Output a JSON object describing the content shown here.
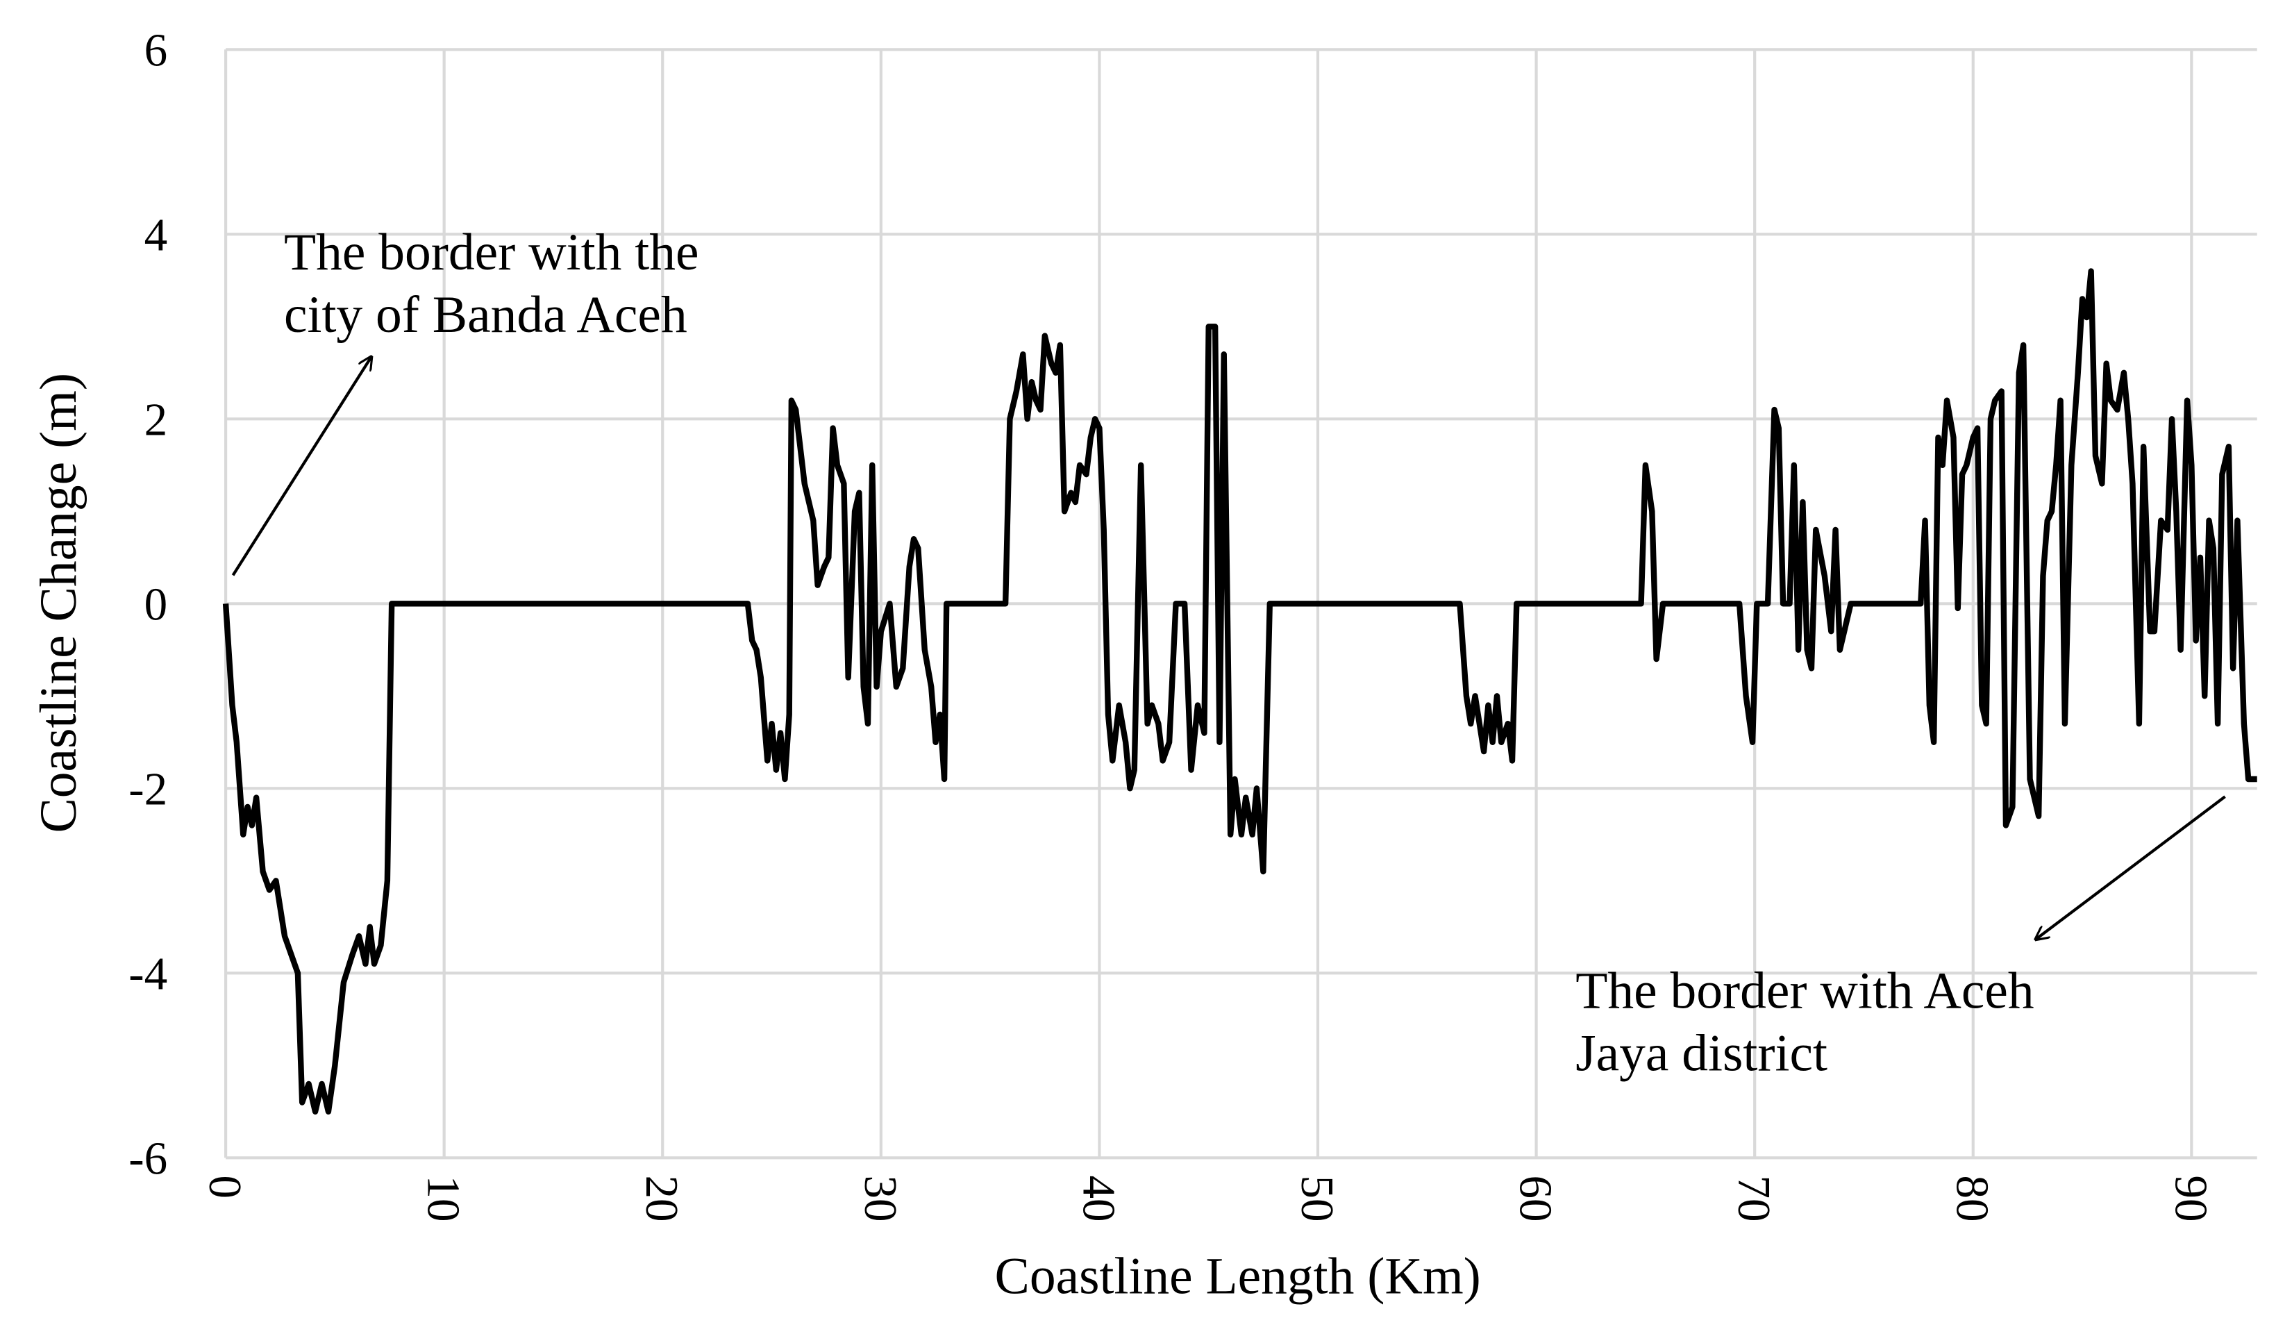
{
  "chart_data": {
    "type": "line",
    "xlabel": "Coastline Length (Km)",
    "ylabel": "Coastline Change (m)",
    "xlim": [
      0,
      93
    ],
    "xticks": [
      0,
      10,
      20,
      30,
      40,
      50,
      60,
      70,
      80,
      90
    ],
    "ylim": [
      -6,
      6
    ],
    "yticks": [
      -6,
      -4,
      -2,
      0,
      2,
      4,
      6
    ],
    "grid": true,
    "color": "#000000",
    "annotations": [
      {
        "lines": [
          "The border with the",
          "city of Banda Aceh"
        ]
      },
      {
        "lines": [
          "The border with Aceh",
          "Jaya district"
        ]
      }
    ],
    "x": [
      0,
      0.3,
      0.5,
      0.8,
      1.0,
      1.2,
      1.4,
      1.7,
      2.0,
      2.3,
      2.7,
      3.0,
      3.3,
      3.5,
      3.8,
      4.1,
      4.4,
      4.7,
      5.0,
      5.4,
      5.8,
      6.1,
      6.4,
      6.6,
      6.8,
      7.1,
      7.4,
      7.6,
      23.9,
      24.1,
      24.3,
      24.5,
      24.8,
      25.0,
      25.2,
      25.4,
      25.6,
      25.8,
      25.9,
      26.1,
      26.5,
      26.9,
      27.1,
      27.4,
      27.6,
      27.8,
      28.0,
      28.3,
      28.5,
      28.8,
      29.0,
      29.2,
      29.4,
      29.6,
      29.8,
      30.0,
      30.4,
      30.7,
      31.0,
      31.3,
      31.5,
      31.7,
      32.0,
      32.3,
      32.5,
      32.7,
      32.9,
      33.0,
      35.7,
      35.9,
      36.2,
      36.5,
      36.7,
      36.9,
      37.1,
      37.3,
      37.5,
      37.8,
      38.0,
      38.2,
      38.4,
      38.7,
      38.9,
      39.1,
      39.4,
      39.6,
      39.8,
      40.0,
      40.2,
      40.4,
      40.6,
      40.9,
      41.2,
      41.4,
      41.6,
      41.9,
      42.2,
      42.4,
      42.7,
      42.9,
      43.2,
      43.5,
      43.9,
      44.2,
      44.5,
      44.8,
      45.0,
      45.3,
      45.5,
      45.7,
      46.0,
      46.2,
      46.5,
      46.7,
      47.0,
      47.2,
      47.5,
      47.8,
      56.5,
      56.8,
      57.0,
      57.2,
      57.6,
      57.8,
      58.0,
      58.2,
      58.4,
      58.7,
      58.9,
      59.1,
      64.8,
      65.0,
      65.3,
      65.5,
      65.8,
      69.3,
      69.6,
      69.9,
      70.1,
      70.6,
      70.9,
      71.1,
      71.3,
      71.6,
      71.8,
      72.0,
      72.2,
      72.4,
      72.6,
      72.8,
      73.2,
      73.5,
      73.7,
      73.9,
      74.2,
      74.4,
      77.6,
      77.8,
      78.0,
      78.2,
      78.4,
      78.6,
      78.8,
      79.1,
      79.3,
      79.5,
      79.7,
      80.0,
      80.2,
      80.4,
      80.6,
      80.8,
      81.0,
      81.3,
      81.5,
      81.8,
      82.1,
      82.3,
      82.6,
      83.0,
      83.2,
      83.4,
      83.6,
      83.8,
      84.0,
      84.2,
      84.5,
      84.8,
      85.0,
      85.2,
      85.4,
      85.6,
      85.9,
      86.1,
      86.3,
      86.6,
      86.9,
      87.1,
      87.3,
      87.6,
      87.8,
      88.1,
      88.3,
      88.6,
      88.9,
      89.1,
      89.3,
      89.5,
      89.8,
      90.0,
      90.2,
      90.4,
      90.6,
      90.8,
      91.0,
      91.2,
      91.4,
      91.7,
      91.9,
      92.1,
      92.4,
      92.6,
      93.0
    ],
    "values": [
      0,
      -1.1,
      -1.5,
      -2.5,
      -2.2,
      -2.4,
      -2.1,
      -2.9,
      -3.1,
      -3.0,
      -3.6,
      -3.8,
      -4.0,
      -5.4,
      -5.2,
      -5.5,
      -5.2,
      -5.5,
      -5.0,
      -4.1,
      -3.8,
      -3.6,
      -3.9,
      -3.5,
      -3.9,
      -3.7,
      -3.0,
      0,
      0,
      -0.4,
      -0.5,
      -0.8,
      -1.7,
      -1.3,
      -1.8,
      -1.4,
      -1.9,
      -1.2,
      2.2,
      2.1,
      1.3,
      0.9,
      0.2,
      0.4,
      0.5,
      1.9,
      1.5,
      1.3,
      -0.8,
      1.0,
      1.2,
      -0.9,
      -1.3,
      1.5,
      -0.9,
      -0.3,
      0.0,
      -0.9,
      -0.7,
      0.4,
      0.7,
      0.6,
      -0.5,
      -0.9,
      -1.5,
      -1.2,
      -1.9,
      0,
      0,
      2.0,
      2.3,
      2.7,
      2.0,
      2.4,
      2.2,
      2.1,
      2.9,
      2.6,
      2.5,
      2.8,
      1.0,
      1.2,
      1.1,
      1.5,
      1.4,
      1.8,
      2.0,
      1.9,
      0.8,
      -1.2,
      -1.7,
      -1.1,
      -1.5,
      -2.0,
      -1.8,
      1.5,
      -1.3,
      -1.1,
      -1.3,
      -1.7,
      -1.5,
      0,
      0,
      -1.8,
      -1.1,
      -1.4,
      3.0,
      3.0,
      -1.5,
      2.7,
      -2.5,
      -1.9,
      -2.5,
      -2.1,
      -2.5,
      -2.0,
      -2.9,
      0,
      0,
      -1.0,
      -1.3,
      -1.0,
      -1.6,
      -1.1,
      -1.5,
      -1.0,
      -1.5,
      -1.3,
      -1.7,
      0,
      0,
      1.5,
      1.0,
      -0.6,
      0,
      0,
      -1.0,
      -1.5,
      0,
      0,
      2.1,
      1.9,
      0,
      0,
      1.5,
      -0.5,
      1.1,
      -0.5,
      -0.7,
      0.8,
      0.3,
      -0.3,
      0.8,
      -0.5,
      -0.2,
      0,
      0,
      0.9,
      -1.1,
      -1.5,
      1.8,
      1.5,
      2.2,
      1.8,
      -0.05,
      1.4,
      1.5,
      1.8,
      1.9,
      -1.1,
      -1.3,
      2.0,
      2.2,
      2.3,
      -2.4,
      -2.2,
      2.5,
      2.8,
      -1.9,
      -2.3,
      0.3,
      0.9,
      1.0,
      1.5,
      2.2,
      -1.3,
      1.5,
      2.5,
      3.3,
      3.1,
      3.6,
      1.6,
      1.3,
      2.6,
      2.2,
      2.1,
      2.5,
      2.0,
      1.3,
      -1.3,
      1.7,
      -0.3,
      -0.3,
      0.9,
      0.8,
      2.0,
      1.0,
      -0.5,
      2.2,
      1.5,
      -0.4,
      0.5,
      -1.0,
      0.9,
      0.6,
      -1.3,
      1.4,
      1.7,
      -0.7,
      0.9,
      -1.3,
      -1.9,
      -1.9
    ]
  }
}
